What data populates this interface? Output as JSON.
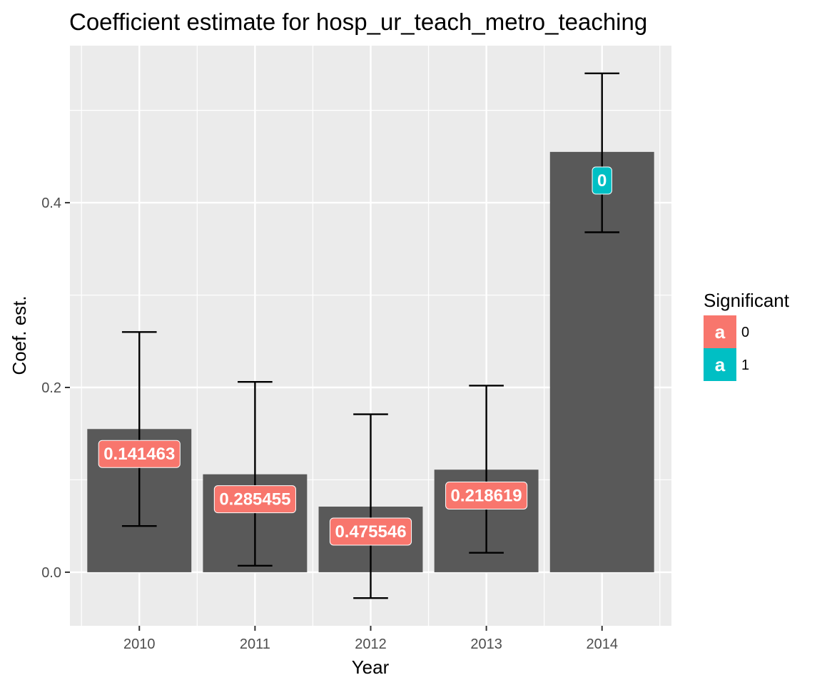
{
  "chart_data": {
    "type": "bar",
    "title": "Coefficient estimate for hosp_ur_teach_metro_teaching",
    "xlabel": "Year",
    "ylabel": "Coef. est.",
    "categories": [
      "2010",
      "2011",
      "2012",
      "2013",
      "2014"
    ],
    "values": [
      0.155,
      0.106,
      0.071,
      0.111,
      0.455
    ],
    "error_low": [
      0.05,
      0.007,
      -0.028,
      0.021,
      0.368
    ],
    "error_high": [
      0.26,
      0.206,
      0.171,
      0.202,
      0.54
    ],
    "labels": [
      "0.141463",
      "0.285455",
      "0.475546",
      "0.218619",
      "0"
    ],
    "label_y": [
      0.128,
      0.079,
      0.044,
      0.083,
      0.424
    ],
    "significant": [
      "0",
      "0",
      "0",
      "0",
      "1"
    ],
    "ylim": [
      -0.058,
      0.57
    ],
    "yticks": [
      0.0,
      0.2,
      0.4
    ],
    "ytick_labels": [
      "0.0",
      "0.2",
      "0.4"
    ],
    "grid": true,
    "bar_color": "#595959",
    "panel_color": "#ebebeb",
    "legend": {
      "title": "Significant",
      "position": "right",
      "key_glyph": "a",
      "entries": [
        {
          "label": "0",
          "color": "#F8766D"
        },
        {
          "label": "1",
          "color": "#00BFC4"
        }
      ]
    }
  }
}
